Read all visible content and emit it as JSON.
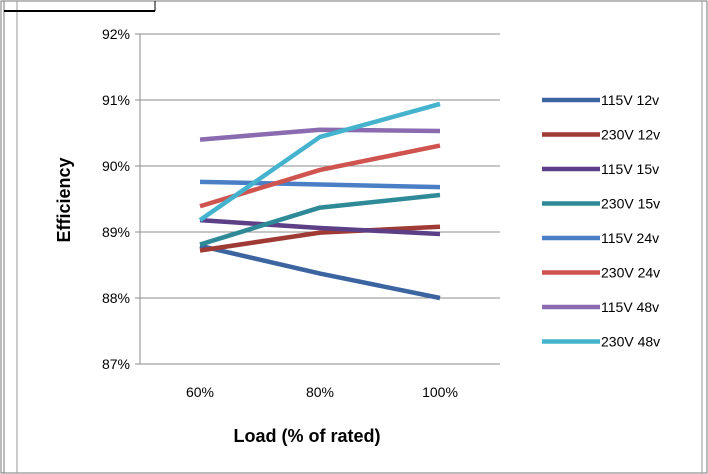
{
  "chart_data": {
    "type": "line",
    "title": "",
    "xlabel": "Load (% of rated)",
    "ylabel": "Efficiency",
    "categories": [
      "60%",
      "80%",
      "100%"
    ],
    "ylim": [
      0.87,
      0.92
    ],
    "y_ticks": [
      "87%",
      "88%",
      "89%",
      "90%",
      "91%",
      "92%"
    ],
    "grid": true,
    "legend": "right",
    "series": [
      {
        "name": "115V 12v",
        "color": "#3b64a0",
        "values": [
          0.8879,
          0.8837,
          0.88
        ]
      },
      {
        "name": "230V 12v",
        "color": "#a03a34",
        "values": [
          0.8872,
          0.8899,
          0.8908
        ]
      },
      {
        "name": "115V 15v",
        "color": "#5c3f86",
        "values": [
          0.8918,
          0.8906,
          0.8897
        ]
      },
      {
        "name": "230V 15v",
        "color": "#2f8a98",
        "values": [
          0.8881,
          0.8937,
          0.8956
        ]
      },
      {
        "name": "115V 24v",
        "color": "#4a7fc6",
        "values": [
          0.8976,
          0.8972,
          0.8968
        ]
      },
      {
        "name": "230V 24v",
        "color": "#cf5450",
        "values": [
          0.8939,
          0.8994,
          0.9031
        ]
      },
      {
        "name": "115V 48v",
        "color": "#8a6bb0",
        "values": [
          0.904,
          0.9055,
          0.9053
        ]
      },
      {
        "name": "230V 48v",
        "color": "#45b3ce",
        "values": [
          0.8918,
          0.9044,
          0.9094
        ]
      }
    ]
  }
}
